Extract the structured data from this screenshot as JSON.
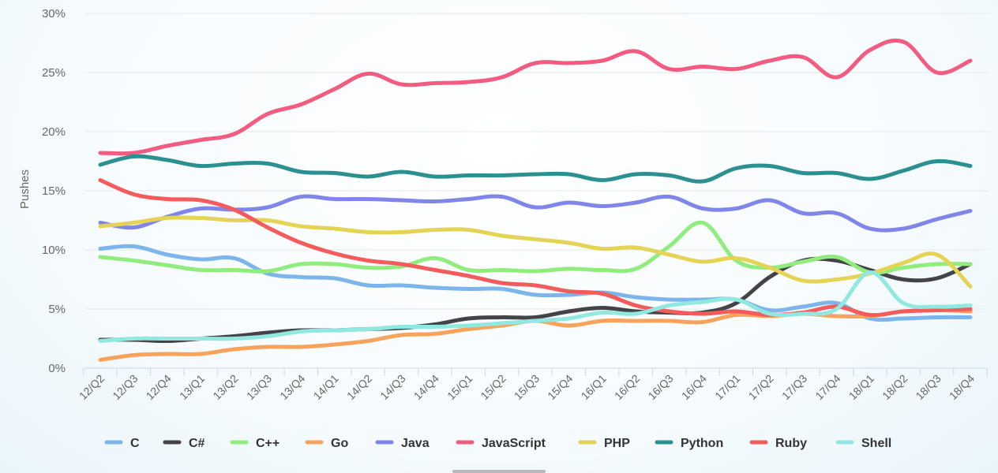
{
  "chart_data": {
    "type": "line",
    "ylabel": "Pushes",
    "xlabel": "",
    "ylim": [
      0,
      30
    ],
    "yticks": [
      0,
      5,
      10,
      15,
      20,
      25,
      30
    ],
    "ytick_labels": [
      "0%",
      "5%",
      "10%",
      "15%",
      "20%",
      "25%",
      "30%"
    ],
    "grid": true,
    "legend_position": "bottom",
    "categories": [
      "12/Q2",
      "12/Q3",
      "12/Q4",
      "13/Q1",
      "13/Q2",
      "13/Q3",
      "13/Q4",
      "14/Q1",
      "14/Q2",
      "14/Q3",
      "14/Q4",
      "15/Q1",
      "15/Q2",
      "15/Q3",
      "15/Q4",
      "16/Q1",
      "16/Q2",
      "16/Q3",
      "16/Q4",
      "17/Q1",
      "17/Q2",
      "17/Q3",
      "17/Q4",
      "18/Q1",
      "18/Q2",
      "18/Q3",
      "18/Q4"
    ],
    "series": [
      {
        "name": "C",
        "color": "#7cb5ec",
        "values": [
          10.1,
          10.3,
          9.6,
          9.2,
          9.3,
          8.0,
          7.7,
          7.6,
          7.0,
          7.0,
          6.8,
          6.7,
          6.7,
          6.2,
          6.2,
          6.4,
          6.0,
          5.8,
          5.8,
          5.8,
          4.9,
          5.2,
          5.5,
          4.2,
          4.2,
          4.3,
          4.3
        ]
      },
      {
        "name": "C#",
        "color": "#434348",
        "values": [
          2.4,
          2.4,
          2.3,
          2.5,
          2.7,
          3.0,
          3.2,
          3.2,
          3.3,
          3.4,
          3.7,
          4.2,
          4.3,
          4.3,
          4.8,
          5.1,
          4.8,
          4.7,
          4.7,
          5.5,
          7.7,
          9.1,
          9.1,
          8.3,
          7.5,
          7.6,
          8.8
        ]
      },
      {
        "name": "C++",
        "color": "#90ed7d",
        "values": [
          9.4,
          9.1,
          8.7,
          8.3,
          8.3,
          8.2,
          8.8,
          8.8,
          8.5,
          8.6,
          9.3,
          8.3,
          8.3,
          8.2,
          8.4,
          8.3,
          8.4,
          10.3,
          12.3,
          9.1,
          8.5,
          9.0,
          9.4,
          8.1,
          8.5,
          8.8,
          8.8
        ]
      },
      {
        "name": "Go",
        "color": "#f7a35c",
        "values": [
          0.7,
          1.1,
          1.2,
          1.2,
          1.6,
          1.8,
          1.8,
          2.0,
          2.3,
          2.8,
          2.9,
          3.3,
          3.6,
          4.0,
          3.6,
          4.0,
          4.0,
          4.0,
          3.9,
          4.5,
          4.4,
          4.6,
          4.4,
          4.4,
          4.8,
          4.9,
          4.8
        ]
      },
      {
        "name": "Java",
        "color": "#8085e9",
        "values": [
          12.3,
          11.9,
          12.8,
          13.5,
          13.4,
          13.6,
          14.5,
          14.3,
          14.3,
          14.2,
          14.1,
          14.3,
          14.5,
          13.6,
          14.0,
          13.7,
          14.0,
          14.5,
          13.5,
          13.5,
          14.2,
          13.1,
          13.1,
          11.8,
          11.8,
          12.6,
          13.3
        ]
      },
      {
        "name": "JavaScript",
        "color": "#f15c80",
        "values": [
          18.2,
          18.2,
          18.8,
          19.3,
          19.8,
          21.5,
          22.3,
          23.6,
          24.9,
          24.0,
          24.1,
          24.2,
          24.6,
          25.8,
          25.8,
          26.0,
          26.8,
          25.3,
          25.5,
          25.3,
          26.0,
          26.3,
          24.6,
          26.9,
          27.6,
          25.0,
          26.0
        ]
      },
      {
        "name": "PHP",
        "color": "#e4d354",
        "values": [
          12.0,
          12.3,
          12.7,
          12.7,
          12.5,
          12.5,
          12.0,
          11.8,
          11.5,
          11.5,
          11.7,
          11.7,
          11.2,
          10.9,
          10.6,
          10.1,
          10.2,
          9.6,
          9.0,
          9.3,
          8.5,
          7.4,
          7.5,
          8.0,
          8.9,
          9.6,
          6.9
        ]
      },
      {
        "name": "Python",
        "color": "#2b908f",
        "values": [
          17.2,
          17.9,
          17.6,
          17.1,
          17.3,
          17.3,
          16.6,
          16.5,
          16.2,
          16.6,
          16.2,
          16.3,
          16.3,
          16.4,
          16.4,
          15.9,
          16.4,
          16.3,
          15.8,
          16.9,
          17.1,
          16.5,
          16.5,
          16.0,
          16.7,
          17.5,
          17.1
        ]
      },
      {
        "name": "Ruby",
        "color": "#f45b5b",
        "values": [
          15.9,
          14.7,
          14.3,
          14.2,
          13.4,
          11.9,
          10.6,
          9.7,
          9.1,
          8.8,
          8.3,
          7.8,
          7.2,
          7.0,
          6.5,
          6.3,
          5.3,
          4.8,
          4.6,
          4.8,
          4.5,
          4.7,
          5.2,
          4.5,
          4.8,
          4.9,
          5.0
        ]
      },
      {
        "name": "Shell",
        "color": "#91e8e1",
        "values": [
          2.3,
          2.5,
          2.5,
          2.5,
          2.5,
          2.7,
          3.1,
          3.2,
          3.3,
          3.5,
          3.5,
          3.6,
          3.8,
          4.0,
          4.2,
          4.7,
          4.6,
          5.3,
          5.6,
          5.8,
          4.6,
          4.6,
          5.0,
          8.1,
          5.5,
          5.2,
          5.3
        ]
      }
    ]
  }
}
